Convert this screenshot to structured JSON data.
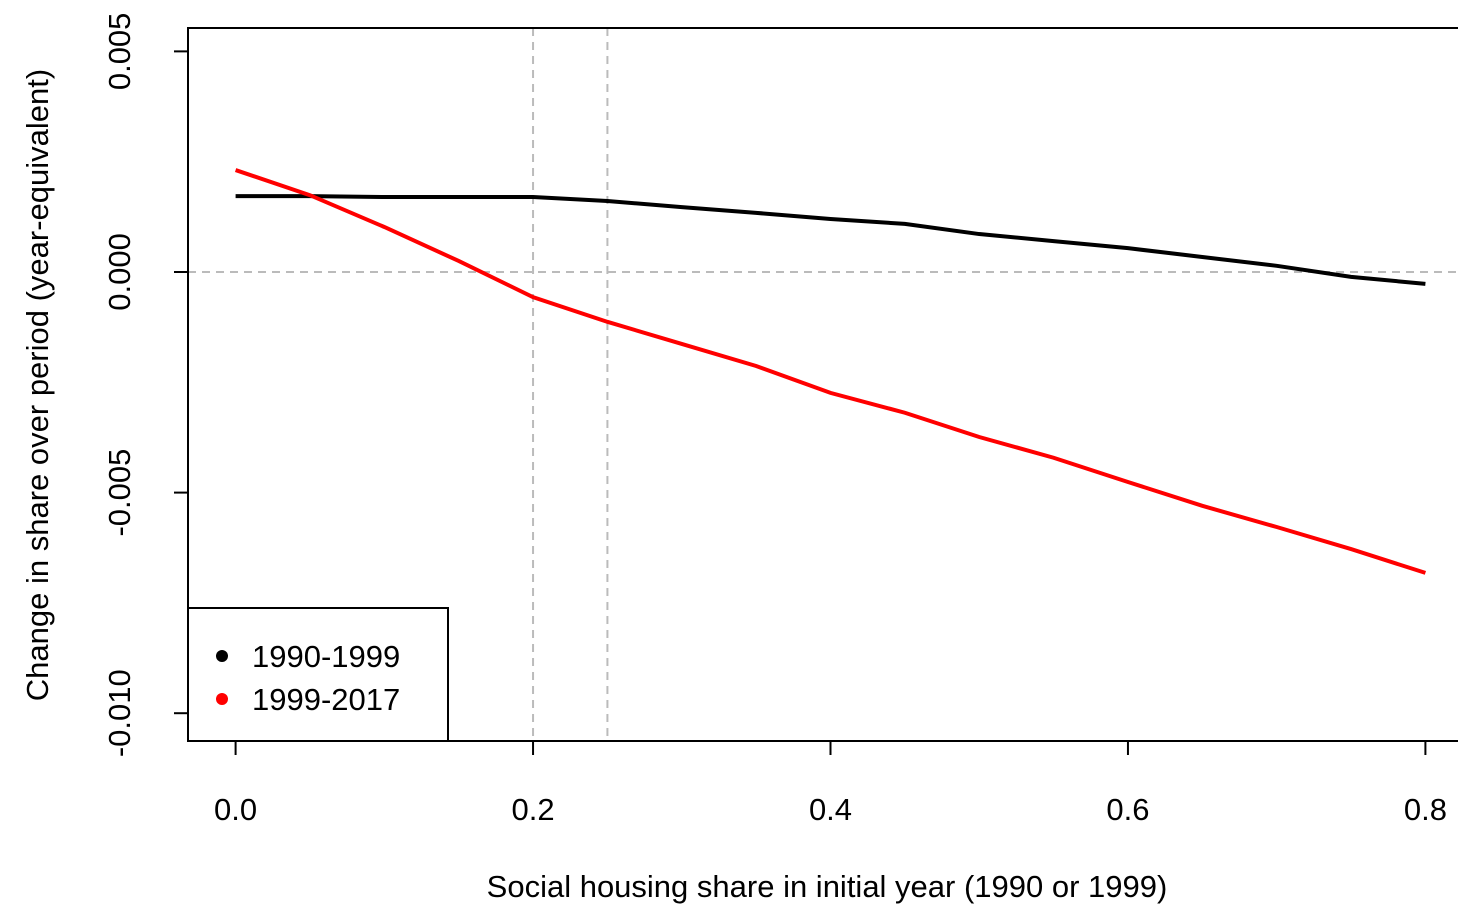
{
  "chart_data": {
    "type": "line",
    "x_label": "Social housing share in initial year (1990 or 1999)",
    "y_label": "Change in share over period (year-equivalent)",
    "x": [
      0.0,
      0.05,
      0.1,
      0.15,
      0.2,
      0.25,
      0.3,
      0.35,
      0.4,
      0.45,
      0.5,
      0.55,
      0.6,
      0.65,
      0.7,
      0.75,
      0.8
    ],
    "series": [
      {
        "name": "1990-1999",
        "color": "#000000",
        "values": [
          0.00172,
          0.00172,
          0.0017,
          0.0017,
          0.0017,
          0.00161,
          0.00147,
          0.00134,
          0.0012,
          0.00109,
          0.00086,
          0.0007,
          0.00054,
          0.00034,
          0.00014,
          -0.00011,
          -0.00027
        ]
      },
      {
        "name": "1999-2017",
        "color": "#ff0000",
        "values": [
          0.00231,
          0.00174,
          0.00102,
          0.00025,
          -0.00057,
          -0.00113,
          -0.00163,
          -0.00213,
          -0.00274,
          -0.00319,
          -0.00374,
          -0.00421,
          -0.00476,
          -0.0053,
          -0.00578,
          -0.00628,
          -0.00682
        ]
      }
    ],
    "xlim": [
      -0.032,
      0.832
    ],
    "ylim": [
      -0.01063,
      0.00553
    ],
    "xticks": [
      {
        "value": 0,
        "label": "0.0"
      },
      0.2,
      0.4,
      0.6,
      0.8
    ],
    "yticks": [
      {
        "value": -0.01,
        "label": "-0.010"
      },
      -0.005,
      {
        "value": 0,
        "label": "0.000"
      },
      0.005
    ],
    "vlines": [
      0.2,
      0.25
    ],
    "hlines": [
      0
    ],
    "legend": "bottom-left"
  }
}
